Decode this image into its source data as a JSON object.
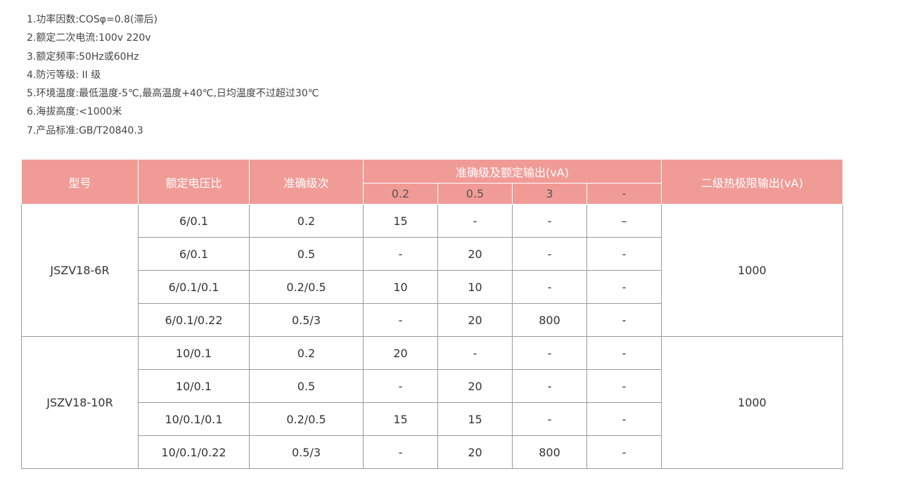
{
  "specs": [
    "1.功率因数:COSφ=0.8(滞后)",
    "2.额定二次电流:100v 220v",
    "3.额定频率:50Hz或60Hz",
    "4.防污等级: II 级",
    "5.环境温度:最低温度-5℃,最高温度+40℃,日均温度不过超过30℃",
    "6.海拔高度:<1000米",
    "7.产品标准:GB/T20840.3"
  ],
  "table": {
    "headers": {
      "model": "型号",
      "ratio": "额定电压比",
      "accuracy": "准确级次",
      "output_group": "准确级及额定输出(vA)",
      "output_cols": [
        "0.2",
        "0.5",
        "3",
        "-"
      ],
      "thermal": "二级热极限输出(vA)"
    },
    "groups": [
      {
        "model": "JSZV18-6R",
        "thermal": "1000",
        "rows": [
          [
            "6/0.1",
            "0.2",
            "15",
            "-",
            "-",
            "–"
          ],
          [
            "6/0.1",
            "0.5",
            "-",
            "20",
            "-",
            "-"
          ],
          [
            "6/0.1/0.1",
            "0.2/0.5",
            "10",
            "10",
            "-",
            "-"
          ],
          [
            "6/0.1/0.22",
            "0.5/3",
            "-",
            "20",
            "800",
            "-"
          ]
        ]
      },
      {
        "model": "JSZV18-10R",
        "thermal": "1000",
        "rows": [
          [
            "10/0.1",
            "0.2",
            "20",
            "-",
            "-",
            "-"
          ],
          [
            "10/0.1",
            "0.5",
            "-",
            "20",
            "-",
            "-"
          ],
          [
            "10/0.1/0.1",
            "0.2/0.5",
            "15",
            "15",
            "-",
            "-"
          ],
          [
            "10/0.1/0.22",
            "0.5/3",
            "-",
            "20",
            "800",
            "-"
          ]
        ]
      }
    ]
  }
}
